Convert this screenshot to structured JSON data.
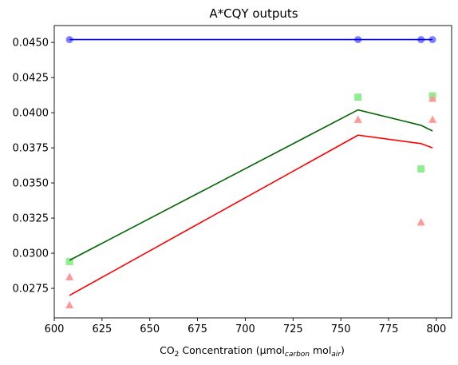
{
  "chart_data": {
    "type": "scatter",
    "title": "A*CQY outputs",
    "xlabel": {
      "prefix": "CO",
      "sub1": "2",
      "middle": " Concentration (μmol",
      "sub2": "carbon",
      "middle2": " mol",
      "sub3": "air",
      "suffix": ")"
    },
    "ylabel": "",
    "xlim": [
      600,
      808
    ],
    "ylim": [
      0.0254,
      0.0462
    ],
    "xticks": [
      600,
      625,
      650,
      675,
      700,
      725,
      750,
      775,
      800
    ],
    "xtick_labels": [
      "600",
      "625",
      "650",
      "675",
      "700",
      "725",
      "750",
      "775",
      "800"
    ],
    "yticks": [
      0.0275,
      0.03,
      0.0325,
      0.035,
      0.0375,
      0.04,
      0.0425,
      0.045
    ],
    "ytick_labels": [
      "0.0275",
      "0.0300",
      "0.0325",
      "0.0350",
      "0.0375",
      "0.0400",
      "0.0425",
      "0.0450"
    ],
    "grid": false,
    "legend": "none",
    "lines": [
      {
        "color": "#0000ff",
        "x": [
          608,
          759,
          792,
          798
        ],
        "y": [
          0.0452,
          0.0452,
          0.0452,
          0.0452
        ]
      },
      {
        "color": "#006400",
        "x": [
          608,
          759,
          792,
          798
        ],
        "y": [
          0.0295,
          0.0402,
          0.0391,
          0.0387
        ]
      },
      {
        "color": "#ff0000",
        "x": [
          608,
          759,
          792,
          798
        ],
        "y": [
          0.027,
          0.0384,
          0.0378,
          0.0375
        ]
      }
    ],
    "markers": [
      {
        "shape": "circle",
        "color": "#8080ff",
        "points": [
          [
            608,
            0.0452
          ],
          [
            759,
            0.0452
          ],
          [
            792,
            0.0452
          ],
          [
            798,
            0.0452
          ]
        ]
      },
      {
        "shape": "square",
        "color": "#90ee90",
        "points": [
          [
            608,
            0.0294
          ],
          [
            759,
            0.0411
          ],
          [
            792,
            0.036
          ],
          [
            798,
            0.0412
          ]
        ]
      },
      {
        "shape": "triangle",
        "color": "#ff9999",
        "points": [
          [
            608,
            0.0283
          ],
          [
            608,
            0.0263
          ],
          [
            759,
            0.0395
          ],
          [
            792,
            0.0322
          ],
          [
            798,
            0.041
          ],
          [
            798,
            0.0395
          ]
        ]
      }
    ]
  }
}
